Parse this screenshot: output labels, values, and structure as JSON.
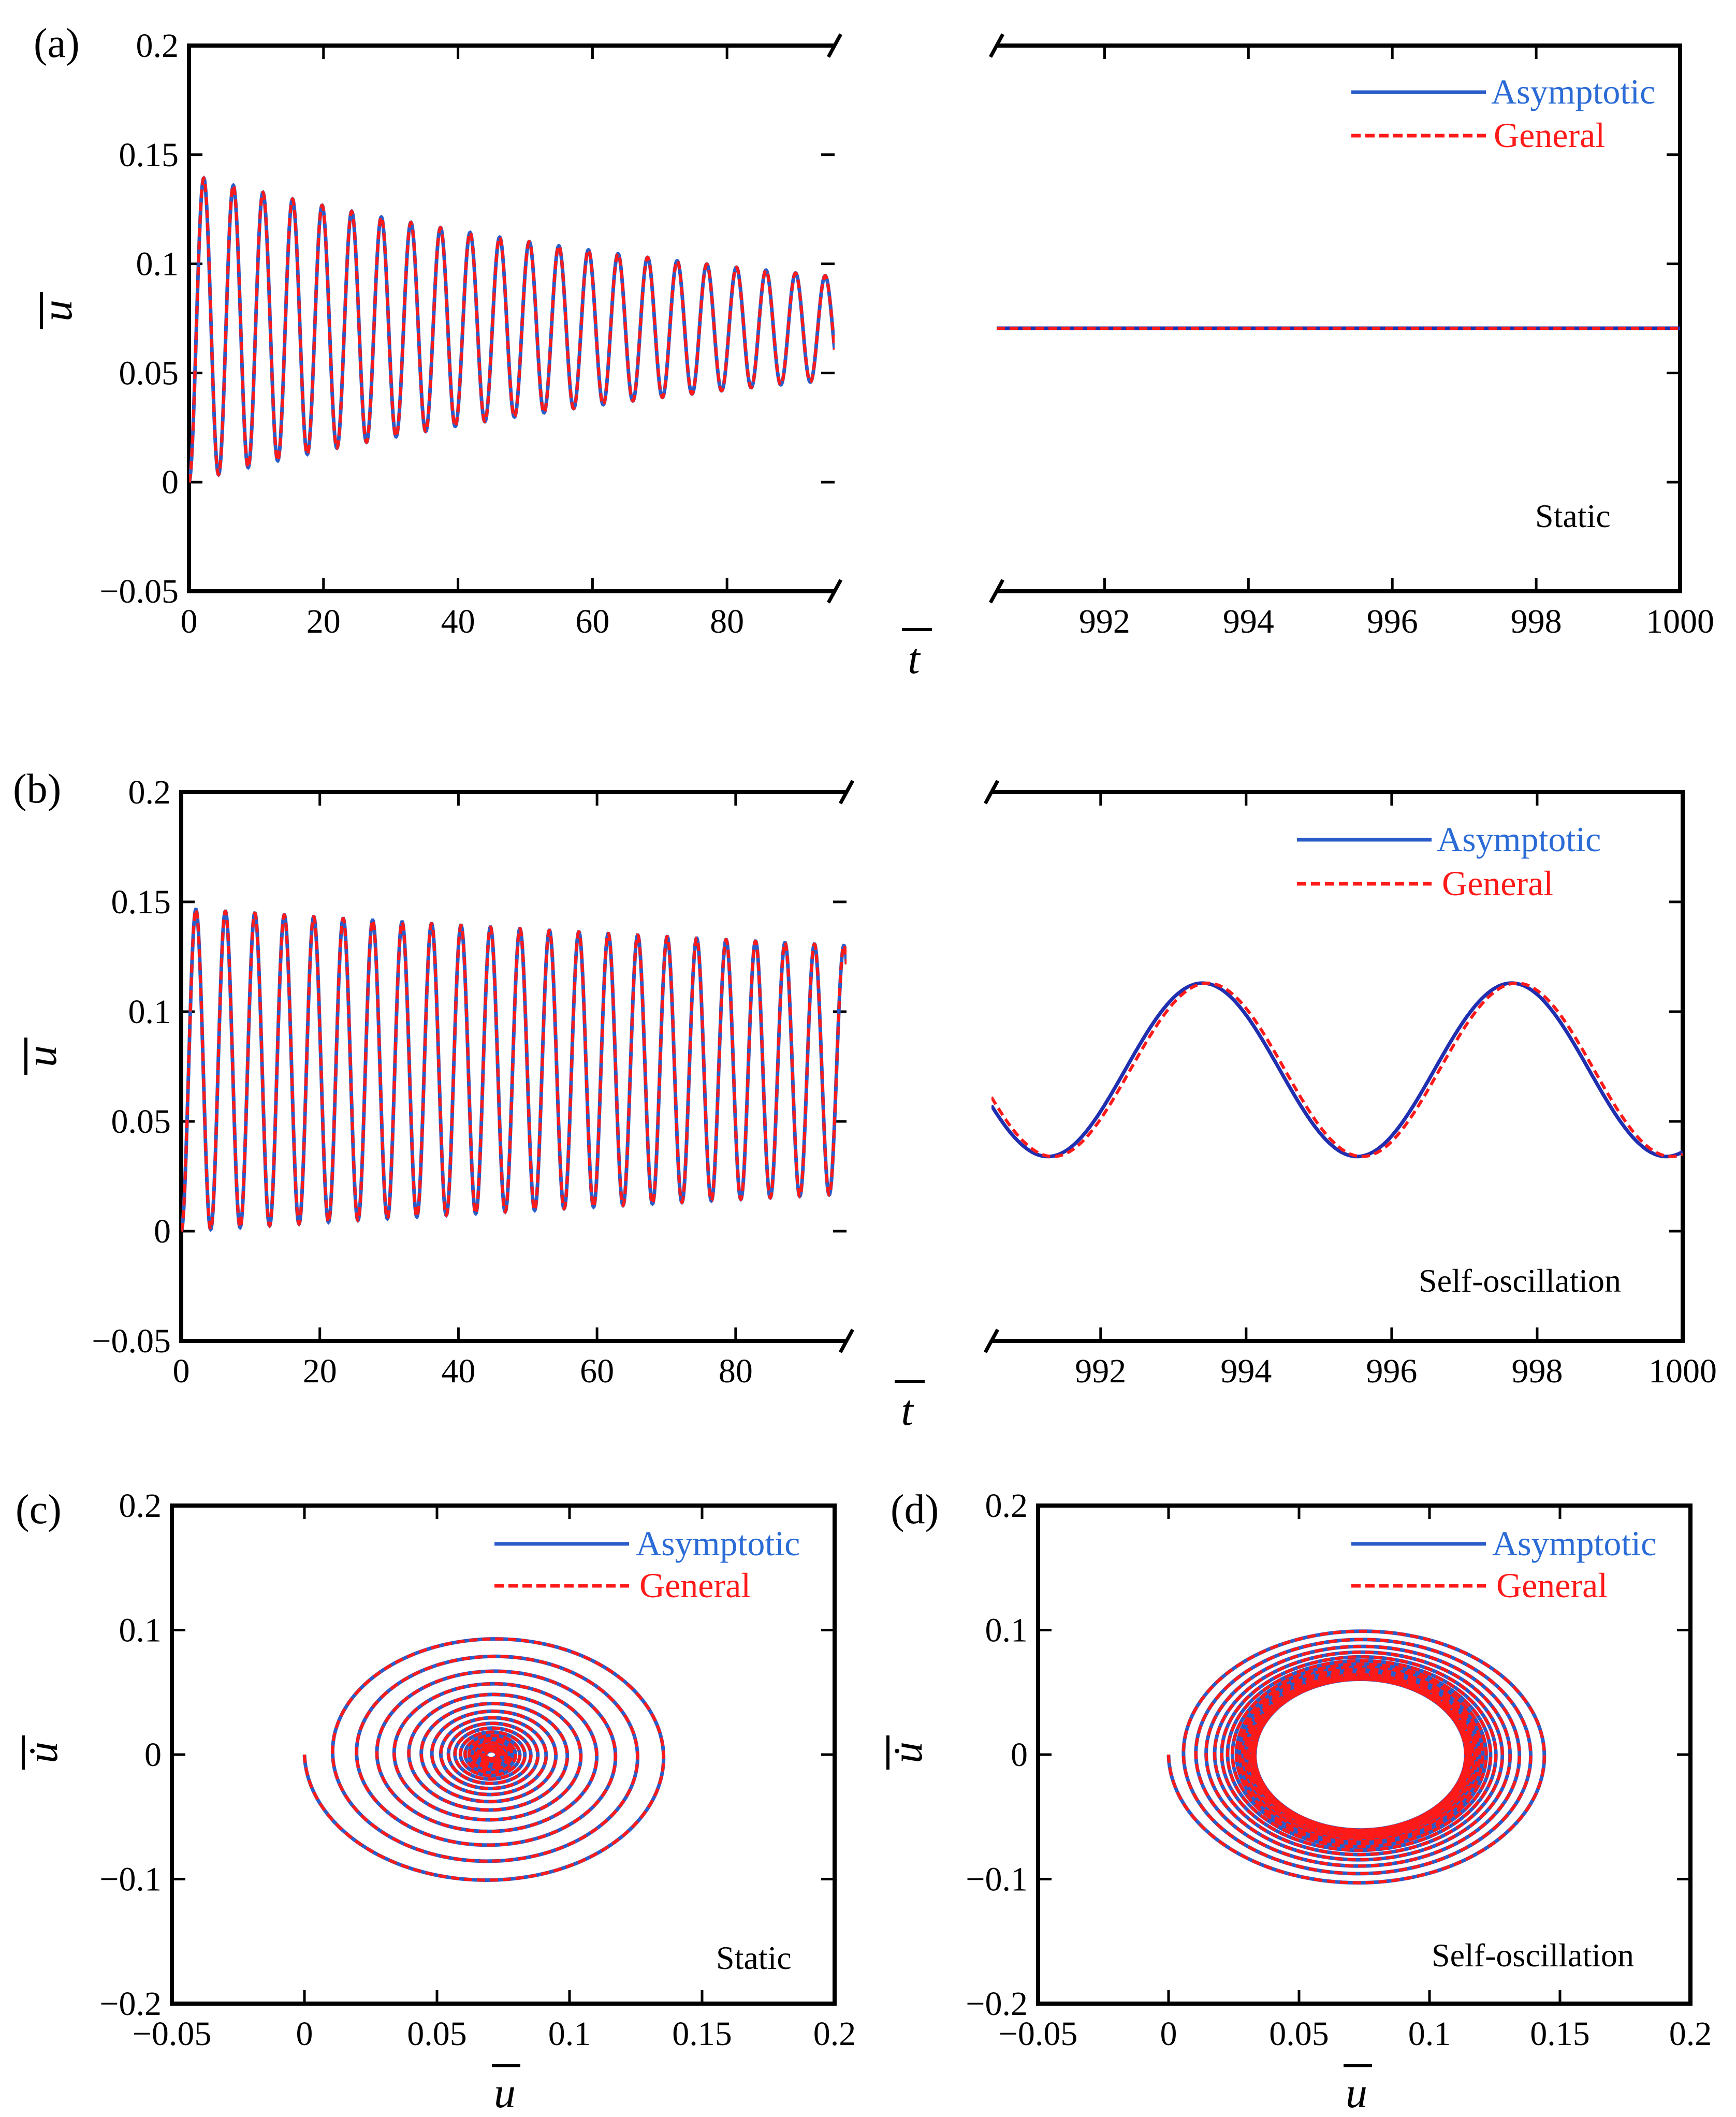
{
  "colors": {
    "asymptotic": "#2a5cc9",
    "general": "#ff1a1a",
    "axis": "#000000"
  },
  "chart_data": [
    {
      "id": "a",
      "panel_label": "(a)",
      "type": "line",
      "xlabel": "t",
      "ylabel": "u",
      "ylim": [
        -0.05,
        0.2
      ],
      "yticks": [
        "0.2",
        "0.15",
        "0.1",
        "0.05",
        "0",
        "−0.05"
      ],
      "left": {
        "xlim": [
          0,
          96
        ],
        "xticks": [
          "0",
          "20",
          "40",
          "60",
          "80"
        ]
      },
      "right": {
        "xlim": [
          990.5,
          1000
        ],
        "xticks": [
          "992",
          "994",
          "996",
          "998",
          "1000"
        ]
      },
      "legend": [
        "Asymptotic",
        "General"
      ],
      "annotation": "Static",
      "series": [
        {
          "name": "Asymptotic",
          "description": "Damped oscillation, period about 4.4, from 0 with peaks decaying from 0.142 to about 0.095 by t = 96, settling to 0.0705 by t = 990"
        },
        {
          "name": "General",
          "description": "Same as Asymptotic (curves overlap)"
        }
      ],
      "model": {
        "equilibrium": 0.0705,
        "initial": 0,
        "period": 4.4,
        "first_peak": 0.142,
        "amp_end": 0.024,
        "final_value": 0.0705
      }
    },
    {
      "id": "b",
      "panel_label": "(b)",
      "type": "line",
      "xlabel": "t",
      "ylabel": "u",
      "ylim": [
        -0.05,
        0.2
      ],
      "yticks": [
        "0.2",
        "0.15",
        "0.1",
        "0.05",
        "0",
        "−0.05"
      ],
      "left": {
        "xlim": [
          0,
          96
        ],
        "xticks": [
          "0",
          "20",
          "40",
          "60",
          "80"
        ]
      },
      "right": {
        "xlim": [
          990.5,
          1000
        ],
        "xticks": [
          "992",
          "994",
          "996",
          "998",
          "1000"
        ]
      },
      "legend": [
        "Asymptotic",
        "General"
      ],
      "annotation": "Self-oscillation",
      "series": [
        {
          "name": "Asymptotic",
          "description": "Oscillation from 0 with peaks from 0.145 to about 0.128 by t = 96; periodic limit cycle between 0.034 and 0.113, period 4.25"
        },
        {
          "name": "General",
          "description": "Same as Asymptotic, slightly phase-lagged"
        }
      ],
      "model": {
        "equilibrium": 0.0735,
        "initial": 0,
        "period": 4.25,
        "first_peak": 0.145,
        "amp_end": 0.055,
        "cycle_min": 0.034,
        "cycle_max": 0.113,
        "cycle_period": 4.25,
        "cycle_first_max_t": 993.4
      }
    },
    {
      "id": "c",
      "panel_label": "(c)",
      "type": "line",
      "xlabel": "u",
      "ylabel": "u̇",
      "xlim": [
        -0.05,
        0.2
      ],
      "ylim": [
        -0.2,
        0.2
      ],
      "xticks": [
        "−0.05",
        "0",
        "0.05",
        "0.1",
        "0.15",
        "0.2"
      ],
      "yticks": [
        "0.2",
        "0.1",
        "0",
        "−0.1",
        "−0.2"
      ],
      "legend": [
        "Asymptotic",
        "General"
      ],
      "annotation": "Static",
      "series": [
        {
          "name": "Asymptotic",
          "description": "Phase trajectory spiralling inward from (0,0) to the focus at (0.0705, 0); outer radius about 0.07 in u and 0.105 in u-dot"
        },
        {
          "name": "General",
          "description": "Same as Asymptotic (curves overlap)"
        }
      ],
      "model": {
        "center_u": 0.0705,
        "u_radius_start": 0.0705,
        "v_radius_start": 0.105,
        "u_radius_end": 0.0,
        "turns": 22
      }
    },
    {
      "id": "d",
      "panel_label": "(d)",
      "type": "line",
      "xlabel": "u",
      "ylabel": "u̇",
      "xlim": [
        -0.05,
        0.2
      ],
      "ylim": [
        -0.2,
        0.2
      ],
      "xticks": [
        "−0.05",
        "0",
        "0.05",
        "0.1",
        "0.15",
        "0.2"
      ],
      "yticks": [
        "0.2",
        "0.1",
        "0",
        "−0.1",
        "−0.2"
      ],
      "legend": [
        "Asymptotic",
        "General"
      ],
      "annotation": "Self-oscillation",
      "series": [
        {
          "name": "Asymptotic",
          "description": "Phase trajectory spiralling inward from (0,0) onto a limit cycle centred at (0.0735, 0) with u-radius about 0.04 and u-dot-radius about 0.06"
        },
        {
          "name": "General",
          "description": "Same as Asymptotic (curves overlap)"
        }
      ],
      "model": {
        "center_u": 0.0735,
        "u_radius_start": 0.0735,
        "v_radius_start": 0.105,
        "u_radius_end": 0.04,
        "v_radius_end": 0.06,
        "turns": 24
      }
    }
  ]
}
